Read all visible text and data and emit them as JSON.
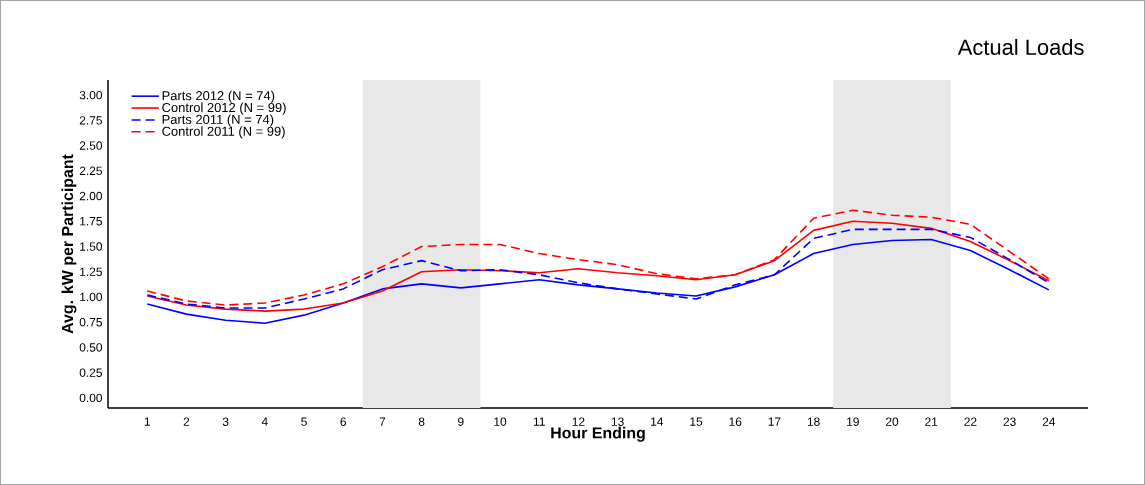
{
  "chart_data": {
    "type": "line",
    "title": "Actual Loads",
    "xlabel": "Hour Ending",
    "ylabel": "Avg. kW per Participant",
    "x": [
      1,
      2,
      3,
      4,
      5,
      6,
      7,
      8,
      9,
      10,
      11,
      12,
      13,
      14,
      15,
      16,
      17,
      18,
      19,
      20,
      21,
      22,
      23,
      24
    ],
    "series": [
      {
        "name": "Parts 2012 (N = 74)",
        "color": "#0000ff",
        "line_style": "solid",
        "values": [
          0.93,
          0.83,
          0.77,
          0.74,
          0.82,
          0.94,
          1.08,
          1.13,
          1.09,
          1.13,
          1.17,
          1.12,
          1.08,
          1.04,
          1.01,
          1.1,
          1.22,
          1.43,
          1.52,
          1.56,
          1.57,
          1.46,
          1.27,
          1.07
        ]
      },
      {
        "name": "Control 2012 (N = 99)",
        "color": "#ff0000",
        "line_style": "solid",
        "values": [
          1.01,
          0.92,
          0.88,
          0.86,
          0.88,
          0.94,
          1.06,
          1.25,
          1.27,
          1.26,
          1.24,
          1.28,
          1.24,
          1.21,
          1.17,
          1.22,
          1.36,
          1.66,
          1.75,
          1.73,
          1.68,
          1.55,
          1.36,
          1.16
        ]
      },
      {
        "name": "Parts 2011 (N = 74)",
        "color": "#0000ff",
        "line_style": "dashed",
        "values": [
          1.02,
          0.93,
          0.89,
          0.89,
          0.98,
          1.08,
          1.27,
          1.36,
          1.26,
          1.27,
          1.22,
          1.14,
          1.08,
          1.03,
          0.98,
          1.12,
          1.22,
          1.58,
          1.67,
          1.67,
          1.67,
          1.59,
          1.37,
          1.14
        ]
      },
      {
        "name": "Control 2011 (N = 99)",
        "color": "#ff0000",
        "line_style": "dashed",
        "values": [
          1.06,
          0.96,
          0.92,
          0.94,
          1.02,
          1.13,
          1.3,
          1.5,
          1.52,
          1.52,
          1.43,
          1.37,
          1.32,
          1.23,
          1.18,
          1.22,
          1.37,
          1.78,
          1.86,
          1.81,
          1.79,
          1.72,
          1.45,
          1.18
        ]
      }
    ],
    "bands": [
      {
        "axis": "x",
        "from": 6.5,
        "to": 9.5,
        "color": "#e8e8e8"
      },
      {
        "axis": "x",
        "from": 18.5,
        "to": 21.5,
        "color": "#e8e8e8"
      }
    ],
    "xlim": [
      0,
      25
    ],
    "ylim": [
      -0.1,
      3.15
    ],
    "xticks": [
      1,
      2,
      3,
      4,
      5,
      6,
      7,
      8,
      9,
      10,
      11,
      12,
      13,
      14,
      15,
      16,
      17,
      18,
      19,
      20,
      21,
      22,
      23,
      24
    ],
    "yticks": [
      {
        "value": 0,
        "label": "0.00"
      },
      {
        "value": 0.25,
        "label": "0.25"
      },
      {
        "value": 0.5,
        "label": "0.50"
      },
      {
        "value": 0.75,
        "label": "0.75"
      },
      {
        "value": 1,
        "label": "1.00"
      },
      {
        "value": 1.25,
        "label": "1.25"
      },
      {
        "value": 1.5,
        "label": "1.50"
      },
      {
        "value": 1.75,
        "label": "1.75"
      },
      {
        "value": 2,
        "label": "2.00"
      },
      {
        "value": 2.25,
        "label": "2.25"
      },
      {
        "value": 2.5,
        "label": "2.50"
      },
      {
        "value": 2.75,
        "label": "2.75"
      },
      {
        "value": 3,
        "label": "3.00"
      }
    ],
    "grid": false,
    "legend": "top left"
  }
}
